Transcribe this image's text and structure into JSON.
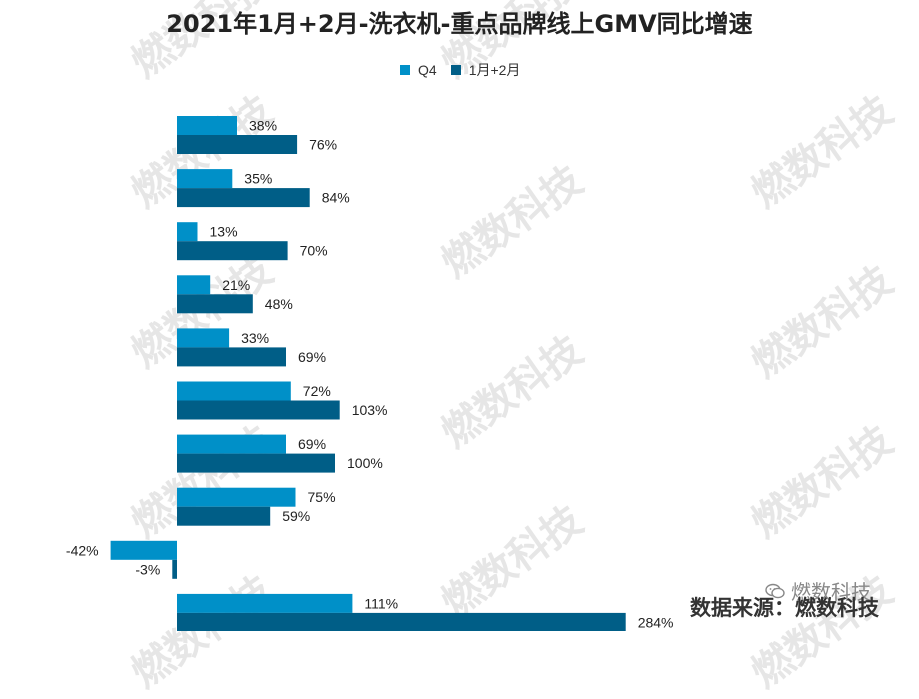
{
  "chart_data": {
    "type": "bar",
    "orientation": "horizontal",
    "title": "2021年1月+2月-洗衣机-重点品牌线上GMV同比增速",
    "categories": [
      "",
      "",
      "",
      "",
      "",
      "",
      "",
      "",
      "",
      ""
    ],
    "series": [
      {
        "name": "Q4",
        "color": "#0090C8",
        "values": [
          38,
          35,
          13,
          21,
          33,
          72,
          69,
          75,
          -42,
          111
        ],
        "labels": [
          "38%",
          "35%",
          "13%",
          "21%",
          "33%",
          "72%",
          "69%",
          "75%",
          "-42%",
          "111%"
        ]
      },
      {
        "name": "1月+2月",
        "color": "#005E87",
        "values": [
          76,
          84,
          70,
          48,
          69,
          103,
          100,
          59,
          -3,
          284
        ],
        "labels": [
          "76%",
          "84%",
          "70%",
          "48%",
          "69%",
          "103%",
          "100%",
          "59%",
          "-3%",
          "284%"
        ]
      }
    ],
    "value_unit": "%",
    "legend_position": "top",
    "grid": false
  },
  "watermark": "燃数科技",
  "source": {
    "wechat_name": "燃数科技",
    "text": "数据来源：燃数科技"
  }
}
